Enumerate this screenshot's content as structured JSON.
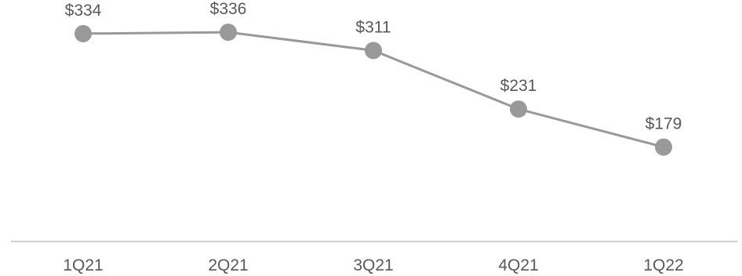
{
  "chart_data": {
    "type": "line",
    "title": "",
    "xlabel": "",
    "ylabel": "",
    "categories": [
      "1Q21",
      "2Q21",
      "3Q21",
      "4Q21",
      "1Q22"
    ],
    "series": [
      {
        "values": [
          334,
          336,
          311,
          231,
          179
        ],
        "data_labels": [
          "$334",
          "$336",
          "$311",
          "$231",
          "$179"
        ]
      }
    ],
    "ylim": [
      50,
      380
    ],
    "grid": false,
    "legend": "none",
    "colors": {
      "line": "#999999",
      "marker": "#999999",
      "axis": "#bfbfbf",
      "text": "#595959"
    }
  }
}
